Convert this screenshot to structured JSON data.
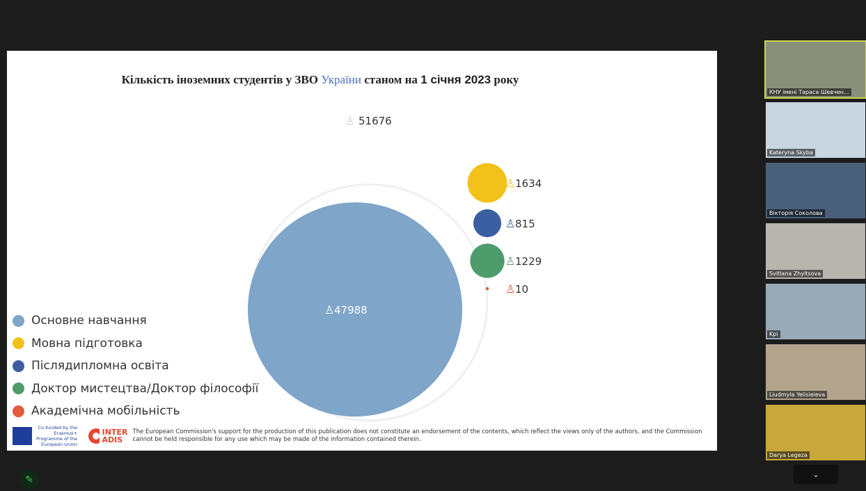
{
  "slide": {
    "title": [
      "Кількість іноземних студентів у ЗВО ",
      "України",
      " станом на ",
      "1 січня 2023",
      " року"
    ],
    "chart": {
      "type": "bubble",
      "total": 51676,
      "series": [
        {
          "name": "Основне навчання",
          "color": "#7fa5c9",
          "value": 47988
        },
        {
          "name": "Мовна підготовка",
          "color": "#f2c11a",
          "value": 1634
        },
        {
          "name": "Післядипломна освіта",
          "color": "#3b5ea2",
          "value": 815
        },
        {
          "name": "Доктор мистецтва/Доктор філософії",
          "color": "#4e9b6c",
          "value": 1229
        },
        {
          "name": "Академічна мобільність",
          "color": "#e15b3d",
          "value": 10
        }
      ]
    },
    "footer": {
      "eu": "Co-funded by the Erasmus+ Programme of the European Union",
      "logo": "INTER ADIS",
      "disclaimer": "The European Commission's support for the production of this publication does not constitute an endorsement of the contents, which reflect the views only of the authors, and the Commission cannot be held responsible for any use which may be made of the information contained therein."
    }
  },
  "participants": [
    "КНУ імені Тараса Шевчен...",
    "Kateryna Skyba",
    "Вікторія Соколова",
    "Svitlana Zhyltsova",
    "Kpi",
    "Liudmyla Yelisieieva",
    "Darya Legeza"
  ]
}
